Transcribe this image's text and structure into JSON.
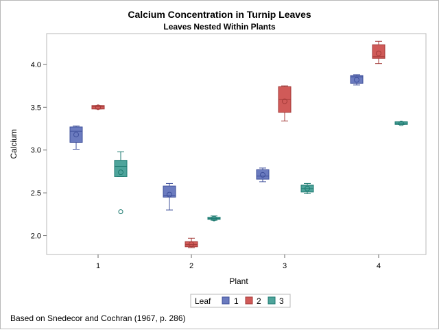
{
  "chart_data": {
    "type": "box",
    "title": "Calcium Concentration in Turnip Leaves",
    "subtitle": "Leaves Nested Within Plants",
    "xlabel": "Plant",
    "ylabel": "Calcium",
    "categories": [
      "1",
      "2",
      "3",
      "4"
    ],
    "ylim": [
      1.78,
      4.36
    ],
    "yticks": [
      "2.0",
      "2.5",
      "3.0",
      "3.5",
      "4.0"
    ],
    "legend": {
      "title": "Leaf",
      "position": "bottom-center"
    },
    "series": [
      {
        "name": "1",
        "color": "#6b7bbf",
        "stroke": "#3e4f9a",
        "boxes": [
          {
            "plant": "1",
            "min": 3.01,
            "q1": 3.09,
            "median": 3.22,
            "q3": 3.27,
            "max": 3.28,
            "mean": 3.18,
            "outliers": []
          },
          {
            "plant": "2",
            "min": 2.3,
            "q1": 2.45,
            "median": 2.465,
            "q3": 2.58,
            "max": 2.61,
            "mean": 2.48,
            "outliers": []
          },
          {
            "plant": "3",
            "min": 2.63,
            "q1": 2.66,
            "median": 2.695,
            "q3": 2.77,
            "max": 2.79,
            "mean": 2.71,
            "outliers": []
          },
          {
            "plant": "4",
            "min": 3.76,
            "q1": 3.78,
            "median": 3.855,
            "q3": 3.87,
            "max": 3.88,
            "mean": 3.82,
            "outliers": []
          }
        ]
      },
      {
        "name": "2",
        "color": "#d05a58",
        "stroke": "#a33a38",
        "boxes": [
          {
            "plant": "1",
            "min": 3.48,
            "q1": 3.48,
            "median": 3.51,
            "q3": 3.52,
            "max": 3.52,
            "mean": 3.5,
            "outliers": []
          },
          {
            "plant": "2",
            "min": 1.86,
            "q1": 1.87,
            "median": 1.895,
            "q3": 1.93,
            "max": 1.97,
            "mean": 1.9,
            "outliers": []
          },
          {
            "plant": "3",
            "min": 3.34,
            "q1": 3.44,
            "median": 3.59,
            "q3": 3.74,
            "max": 3.75,
            "mean": 3.57,
            "outliers": []
          },
          {
            "plant": "4",
            "min": 4.01,
            "q1": 4.07,
            "median": 4.09,
            "q3": 4.23,
            "max": 4.27,
            "mean": 4.13,
            "outliers": []
          }
        ]
      },
      {
        "name": "3",
        "color": "#4ea49b",
        "stroke": "#1e7a70",
        "boxes": [
          {
            "plant": "1",
            "min": 2.69,
            "q1": 2.69,
            "median": 2.81,
            "q3": 2.88,
            "max": 2.98,
            "mean": 2.74,
            "outliers": [
              2.28
            ]
          },
          {
            "plant": "2",
            "min": 2.18,
            "q1": 2.19,
            "median": 2.2,
            "q3": 2.215,
            "max": 2.23,
            "mean": 2.2,
            "outliers": []
          },
          {
            "plant": "3",
            "min": 2.49,
            "q1": 2.51,
            "median": 2.55,
            "q3": 2.59,
            "max": 2.61,
            "mean": 2.55,
            "outliers": []
          },
          {
            "plant": "4",
            "min": 3.3,
            "q1": 3.3,
            "median": 3.315,
            "q3": 3.33,
            "max": 3.33,
            "mean": 3.31,
            "outliers": []
          }
        ]
      }
    ]
  },
  "footnote": "Based on Snedecor and Cochran (1967, p. 286)"
}
